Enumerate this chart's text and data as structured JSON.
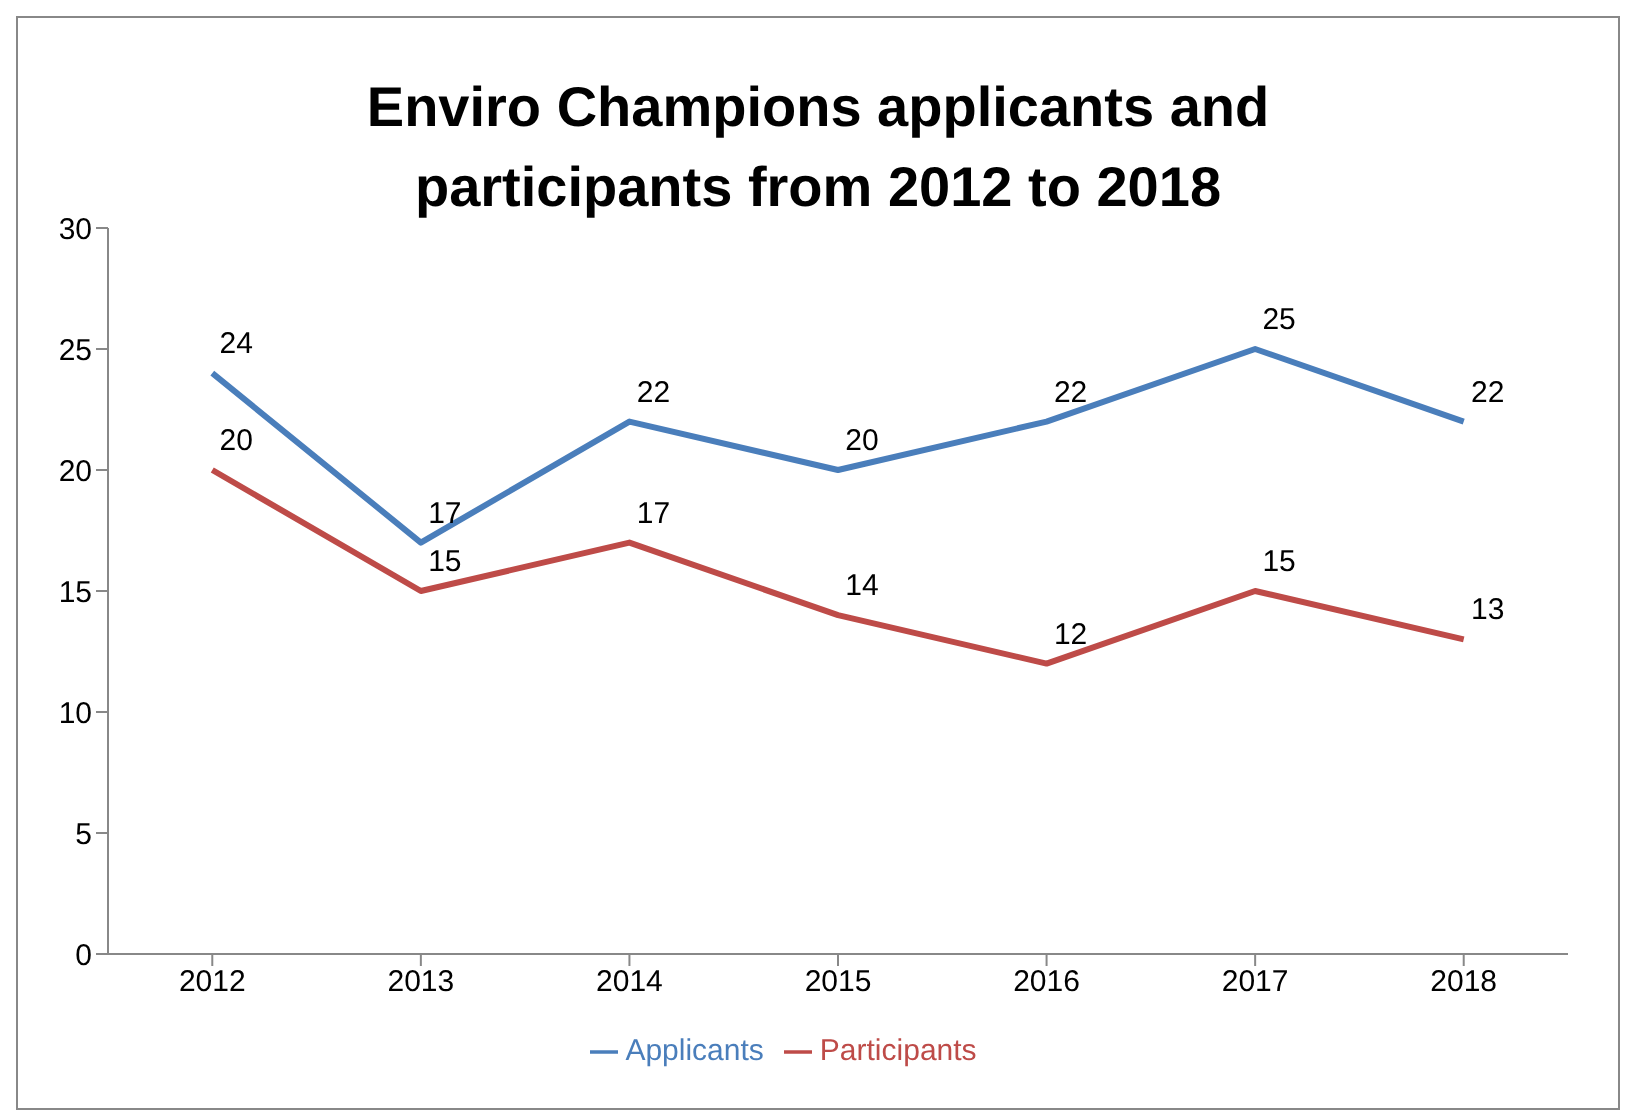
{
  "chart_data": {
    "type": "line",
    "title": "Enviro Champions applicants and participants from 2012 to 2018",
    "categories": [
      "2012",
      "2013",
      "2014",
      "2015",
      "2016",
      "2017",
      "2018"
    ],
    "series": [
      {
        "name": "Applicants",
        "color": "#4a7ebb",
        "values": [
          24,
          17,
          22,
          20,
          22,
          25,
          22
        ]
      },
      {
        "name": "Participants",
        "color": "#be4b48",
        "values": [
          20,
          15,
          17,
          14,
          12,
          15,
          13
        ]
      }
    ],
    "ylim": [
      0,
      30
    ],
    "yticks": [
      0,
      5,
      10,
      15,
      20,
      25,
      30
    ],
    "grid": false,
    "legend": "bottom",
    "data_labels": true,
    "marker": "none",
    "line_style": "solid"
  }
}
